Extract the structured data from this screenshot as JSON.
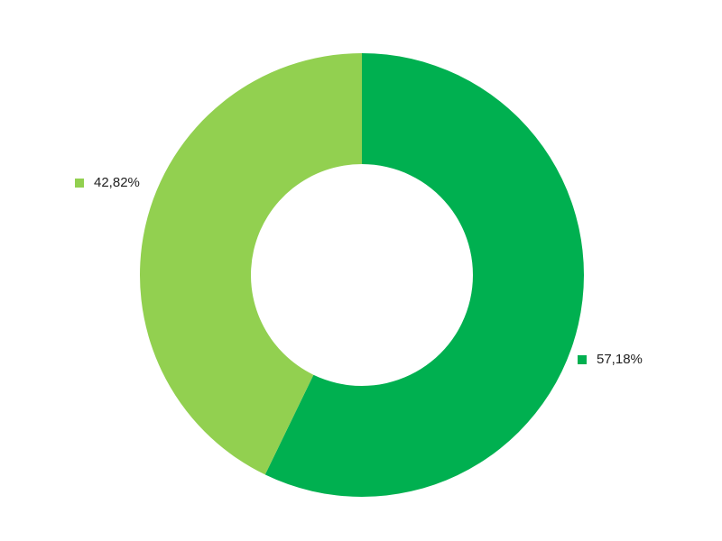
{
  "chart_data": {
    "type": "pie",
    "variant": "donut",
    "title": "",
    "slices": [
      {
        "label": "57,18%",
        "value": 57.18,
        "color": "#00B050"
      },
      {
        "label": "42,82%",
        "value": 42.82,
        "color": "#92D050"
      }
    ],
    "start_angle_deg": 0,
    "direction": "clockwise",
    "legend": "none"
  }
}
